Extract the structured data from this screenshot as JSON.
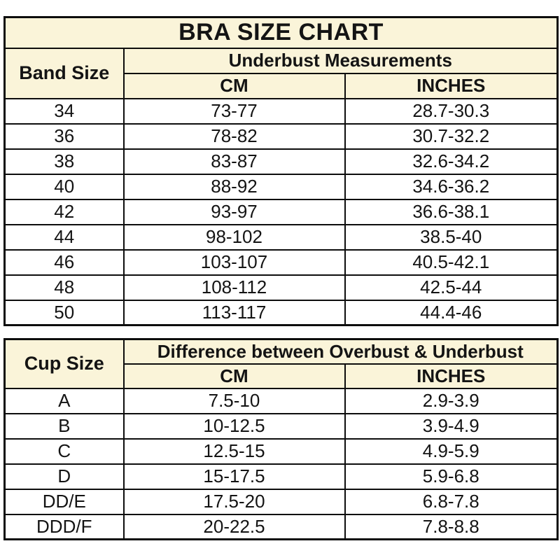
{
  "colors": {
    "header_bg": "#FAF4D9",
    "border": "#0D0D0D",
    "text": "#141414",
    "data_row_bg": "#FFFFFF"
  },
  "chart_data": [
    {
      "type": "table",
      "title": "BRA SIZE CHART",
      "corner_header": "Band Size",
      "group_header": "Underbust Measurements",
      "sub_headers": [
        "CM",
        "INCHES"
      ],
      "rows": [
        [
          "34",
          "73-77",
          "28.7-30.3"
        ],
        [
          "36",
          "78-82",
          "30.7-32.2"
        ],
        [
          "38",
          "83-87",
          "32.6-34.2"
        ],
        [
          "40",
          "88-92",
          "34.6-36.2"
        ],
        [
          "42",
          "93-97",
          "36.6-38.1"
        ],
        [
          "44",
          "98-102",
          "38.5-40"
        ],
        [
          "46",
          "103-107",
          "40.5-42.1"
        ],
        [
          "48",
          "108-112",
          "42.5-44"
        ],
        [
          "50",
          "113-117",
          "44.4-46"
        ]
      ]
    },
    {
      "type": "table",
      "corner_header": "Cup Size",
      "group_header": "Difference between Overbust & Underbust",
      "sub_headers": [
        "CM",
        "INCHES"
      ],
      "rows": [
        [
          "A",
          "7.5-10",
          "2.9-3.9"
        ],
        [
          "B",
          "10-12.5",
          "3.9-4.9"
        ],
        [
          "C",
          "12.5-15",
          "4.9-5.9"
        ],
        [
          "D",
          "15-17.5",
          "5.9-6.8"
        ],
        [
          "DD/E",
          "17.5-20",
          "6.8-7.8"
        ],
        [
          "DDD/F",
          "20-22.5",
          "7.8-8.8"
        ]
      ]
    }
  ]
}
